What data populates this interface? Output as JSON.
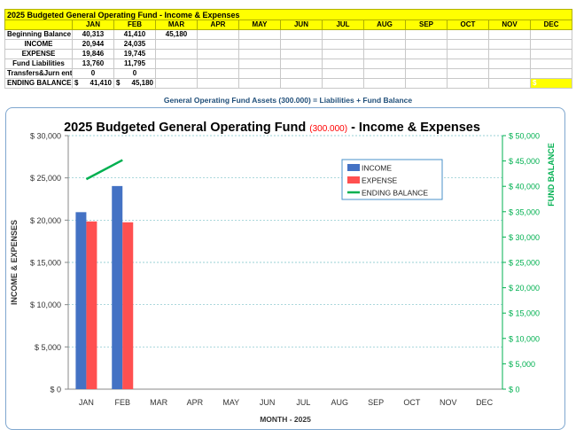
{
  "sheet": {
    "title": "2025 Budgeted General Operating Fund - Income & Expenses",
    "months": [
      "JAN",
      "FEB",
      "MAR",
      "APR",
      "MAY",
      "JUN",
      "JUL",
      "AUG",
      "SEP",
      "OCT",
      "NOV",
      "DEC"
    ],
    "rows": [
      {
        "label": "Beginning Balance",
        "values": [
          "40,313",
          "41,410",
          "45,180",
          "",
          "",
          "",
          "",
          "",
          "",
          "",
          "",
          ""
        ]
      },
      {
        "label": "INCOME",
        "values": [
          "20,944",
          "24,035",
          "",
          "",
          "",
          "",
          "",
          "",
          "",
          "",
          "",
          ""
        ]
      },
      {
        "label": "EXPENSE",
        "values": [
          "19,846",
          "19,745",
          "",
          "",
          "",
          "",
          "",
          "",
          "",
          "",
          "",
          ""
        ]
      },
      {
        "label": "Fund Liabilities",
        "values": [
          "13,760",
          "11,795",
          "",
          "",
          "",
          "",
          "",
          "",
          "",
          "",
          "",
          ""
        ]
      },
      {
        "label": "Transfers&Jurn ent",
        "values": [
          "0",
          "0",
          "",
          "",
          "",
          "",
          "",
          "",
          "",
          "",
          "",
          ""
        ]
      }
    ],
    "ending": {
      "label": "ENDING BALANCE",
      "cells": [
        {
          "dollar": "$",
          "amount": "41,410"
        },
        {
          "dollar": "$",
          "amount": "45,180"
        }
      ],
      "dec_dollar": "$"
    }
  },
  "assets_note": "General Operating Fund Assets (300.000) = Liabilities + Fund Balance",
  "chart_data": {
    "type": "bar",
    "title_part1": "2025 Budgeted General Operating Fund ",
    "title_highlight": "(300.000)",
    "title_part2": " - Income & Expenses",
    "categories": [
      "JAN",
      "FEB",
      "MAR",
      "APR",
      "MAY",
      "JUN",
      "JUL",
      "AUG",
      "SEP",
      "OCT",
      "NOV",
      "DEC"
    ],
    "series": [
      {
        "name": "INCOME",
        "type": "bar",
        "axis": "left",
        "color": "#4472c4",
        "values": [
          20944,
          24035,
          null,
          null,
          null,
          null,
          null,
          null,
          null,
          null,
          null,
          null
        ]
      },
      {
        "name": "EXPENSE",
        "type": "bar",
        "axis": "left",
        "color": "#ff5050",
        "values": [
          19846,
          19745,
          null,
          null,
          null,
          null,
          null,
          null,
          null,
          null,
          null,
          null
        ]
      },
      {
        "name": "ENDING  BALANCE",
        "type": "line",
        "axis": "right",
        "color": "#00b050",
        "values": [
          41410,
          45180,
          null,
          null,
          null,
          null,
          null,
          null,
          null,
          null,
          null,
          null
        ]
      }
    ],
    "ylabel": "INCOME  &  EXPENSES",
    "y2label": "FUND  BALANCE",
    "xlabel": "MONTH  -  2025",
    "ylim": [
      0,
      30000
    ],
    "y2lim": [
      0,
      50000
    ],
    "yticks": [
      "$ 0",
      "$ 5,000",
      "$ 10,000",
      "$ 15,000",
      "$ 20,000",
      "$ 25,000",
      "$ 30,000"
    ],
    "y2ticks": [
      "$ 0",
      "$ 5,000",
      "$ 10,000",
      "$ 15,000",
      "$ 20,000",
      "$ 25,000",
      "$ 30,000",
      "$ 35,000",
      "$ 40,000",
      "$ 45,000",
      "$ 50,000"
    ],
    "grid": true,
    "legend_position": "top-right",
    "colors": {
      "right_axis": "#00b050",
      "highlight": "#ff0000",
      "grid": "#7ac1c8"
    }
  }
}
